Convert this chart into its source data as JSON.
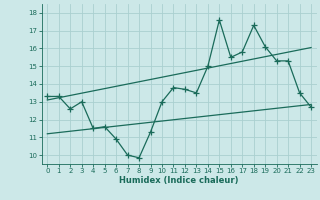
{
  "title": "",
  "xlabel": "Humidex (Indice chaleur)",
  "bg_color": "#cce8e8",
  "grid_color": "#aad0d0",
  "line_color": "#1a6b5a",
  "x_ticks": [
    0,
    1,
    2,
    3,
    4,
    5,
    6,
    7,
    8,
    9,
    10,
    11,
    12,
    13,
    14,
    15,
    16,
    17,
    18,
    19,
    20,
    21,
    22,
    23
  ],
  "y_ticks": [
    10,
    11,
    12,
    13,
    14,
    15,
    16,
    17,
    18
  ],
  "ylim": [
    9.5,
    18.5
  ],
  "xlim": [
    -0.5,
    23.5
  ],
  "main_x": [
    0,
    1,
    2,
    3,
    4,
    5,
    6,
    7,
    8,
    9,
    10,
    11,
    12,
    13,
    14,
    15,
    16,
    17,
    18,
    19,
    20,
    21,
    22,
    23
  ],
  "main_y": [
    13.3,
    13.3,
    12.6,
    13.0,
    11.5,
    11.6,
    10.9,
    10.0,
    9.85,
    11.3,
    13.0,
    13.8,
    13.7,
    13.5,
    15.0,
    17.6,
    15.5,
    15.8,
    17.3,
    16.1,
    15.3,
    15.3,
    13.5,
    12.7
  ],
  "trend1_x": [
    0,
    23
  ],
  "trend1_y": [
    13.1,
    16.05
  ],
  "trend2_x": [
    0,
    23
  ],
  "trend2_y": [
    11.2,
    12.85
  ],
  "marker": "+",
  "markersize": 4,
  "linewidth": 0.9,
  "tick_fontsize": 5.0,
  "xlabel_fontsize": 6.0
}
